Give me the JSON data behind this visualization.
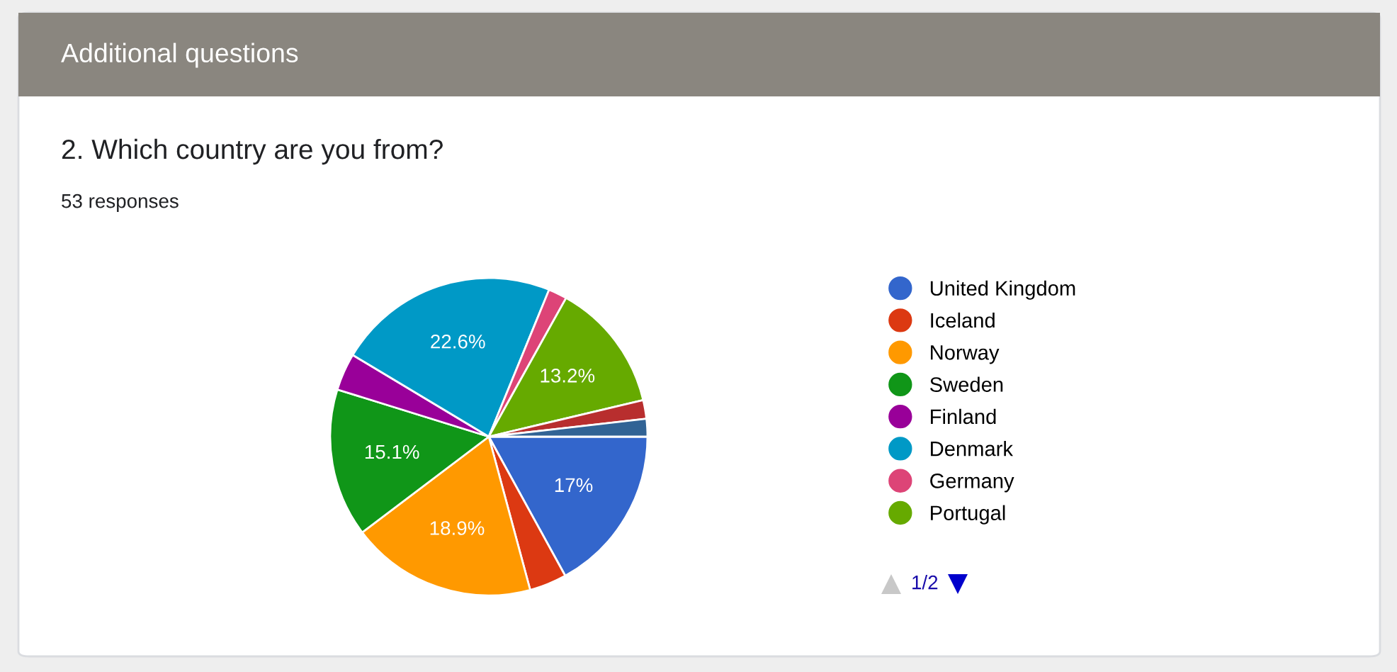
{
  "chart_data": {
    "type": "pie",
    "title": "2. Which country are you from?",
    "subtitle": "53 responses",
    "annotations": [
      "Additional questions",
      "1/2"
    ],
    "categories": [
      "United Kingdom",
      "Iceland",
      "Norway",
      "Sweden",
      "Finland",
      "Denmark",
      "Germany",
      "Portugal",
      null,
      null
    ],
    "values": [
      17,
      3.8,
      18.9,
      15.1,
      3.8,
      22.6,
      1.9,
      13.2,
      1.9,
      1.8
    ],
    "value_labels": [
      "17%",
      null,
      "18.9%",
      "15.1%",
      null,
      "22.6%",
      null,
      "13.2%",
      null,
      null
    ],
    "colors": [
      "#3366cc",
      "#dc3912",
      "#ff9900",
      "#109618",
      "#990099",
      "#0099c6",
      "#dd4477",
      "#66aa00",
      "#b82e2e",
      "#316395"
    ],
    "legend": "right"
  }
}
